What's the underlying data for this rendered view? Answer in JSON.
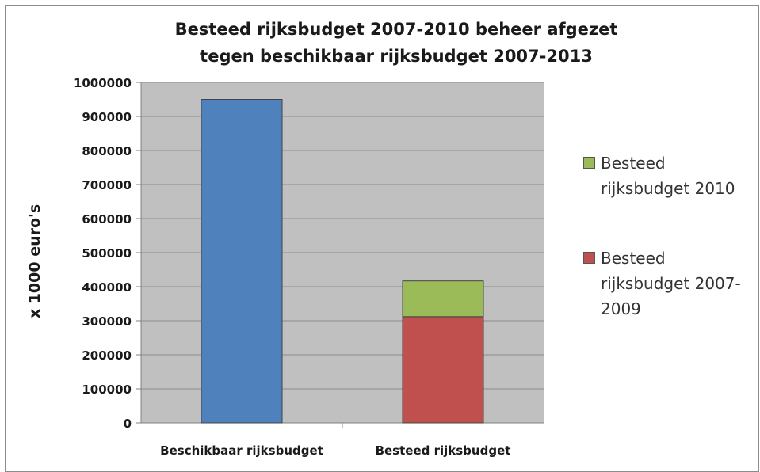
{
  "chart_data": {
    "type": "bar",
    "stacked": true,
    "title": [
      "Besteed rijksbudget 2007-2010 beheer afgezet",
      "tegen beschikbaar rijksbudget 2007-2013"
    ],
    "xlabel": "",
    "ylabel": "x 1000 euro's",
    "ylim": [
      0,
      1000000
    ],
    "yticks": [
      "0",
      "100000",
      "200000",
      "300000",
      "400000",
      "500000",
      "600000",
      "700000",
      "800000",
      "900000",
      "1000000"
    ],
    "grid": true,
    "legend_position": "right",
    "categories": [
      "Beschikbaar rijksbudget",
      "Besteed rijksbudget"
    ],
    "series": [
      {
        "name": "Beschikbaar rijksbudget",
        "color": "#4f81bd",
        "values": [
          950000,
          0
        ],
        "in_legend": false
      },
      {
        "name": "Besteed rijksbudget 2007-2009",
        "color": "#c0504d",
        "values": [
          0,
          312000
        ]
      },
      {
        "name": "Besteed rijksbudget 2010",
        "color": "#9bbb59",
        "values": [
          0,
          105000
        ]
      }
    ],
    "legend": [
      {
        "lines": [
          "Besteed",
          "rijksbudget 2010"
        ],
        "color": "#9bbb59"
      },
      {
        "lines": [
          "Besteed",
          "rijksbudget 2007-",
          "2009"
        ],
        "color": "#c0504d"
      }
    ]
  },
  "colors": {
    "plot_bg": "#c0c0c0",
    "gridline": "#8c8c8c"
  }
}
